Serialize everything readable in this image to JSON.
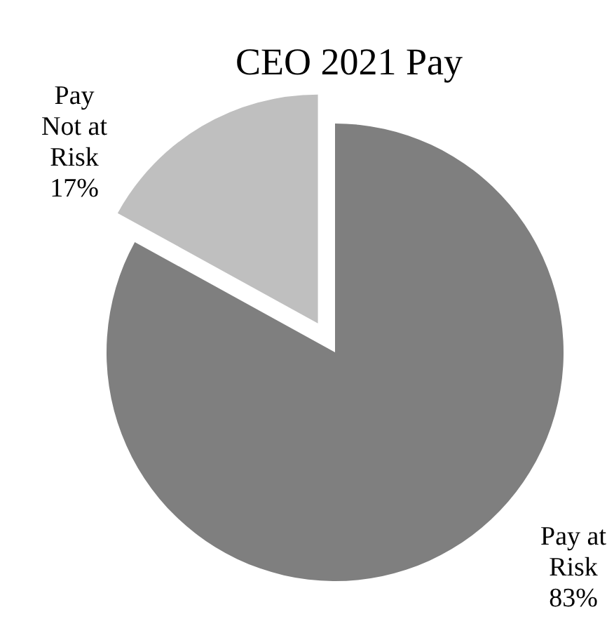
{
  "chart_data": {
    "type": "pie",
    "title": "CEO 2021 Pay",
    "categories": [
      "Pay at Risk",
      "Pay Not at Risk"
    ],
    "values": [
      83,
      17
    ],
    "colors": [
      "#7f7f7f",
      "#bfbfbf"
    ],
    "value_labels": [
      "83%",
      "17%"
    ]
  }
}
